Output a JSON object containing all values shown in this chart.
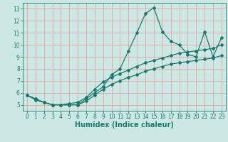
{
  "xlabel": "Humidex (Indice chaleur)",
  "x": [
    0,
    1,
    2,
    3,
    4,
    5,
    6,
    7,
    8,
    9,
    10,
    11,
    12,
    13,
    14,
    15,
    16,
    17,
    18,
    19,
    20,
    21,
    22,
    23
  ],
  "line1": [
    5.8,
    5.5,
    5.2,
    5.0,
    5.0,
    5.0,
    5.0,
    5.5,
    6.0,
    6.5,
    7.5,
    8.0,
    9.5,
    11.0,
    12.6,
    13.1,
    11.1,
    10.3,
    10.0,
    9.2,
    9.0,
    11.1,
    9.0,
    10.6
  ],
  "line2": [
    5.8,
    5.5,
    5.2,
    5.0,
    5.0,
    5.1,
    5.2,
    5.6,
    6.3,
    6.9,
    7.3,
    7.6,
    7.9,
    8.2,
    8.5,
    8.7,
    8.9,
    9.1,
    9.3,
    9.4,
    9.5,
    9.6,
    9.7,
    10.0
  ],
  "line3": [
    5.8,
    5.4,
    5.2,
    5.0,
    5.0,
    5.0,
    5.0,
    5.3,
    5.8,
    6.3,
    6.7,
    7.0,
    7.3,
    7.5,
    7.8,
    8.0,
    8.2,
    8.4,
    8.5,
    8.6,
    8.7,
    8.8,
    8.9,
    9.1
  ],
  "line_color": "#1a7a6e",
  "bg_color": "#cce8e4",
  "grid_color": "#e8a0a0",
  "ylim": [
    4.5,
    13.5
  ],
  "xlim": [
    -0.5,
    23.5
  ],
  "yticks": [
    5,
    6,
    7,
    8,
    9,
    10,
    11,
    12,
    13
  ],
  "xticks": [
    0,
    1,
    2,
    3,
    4,
    5,
    6,
    7,
    8,
    9,
    10,
    11,
    12,
    13,
    14,
    15,
    16,
    17,
    18,
    19,
    20,
    21,
    22,
    23
  ],
  "tick_fontsize": 5.5,
  "label_fontsize": 7.0
}
